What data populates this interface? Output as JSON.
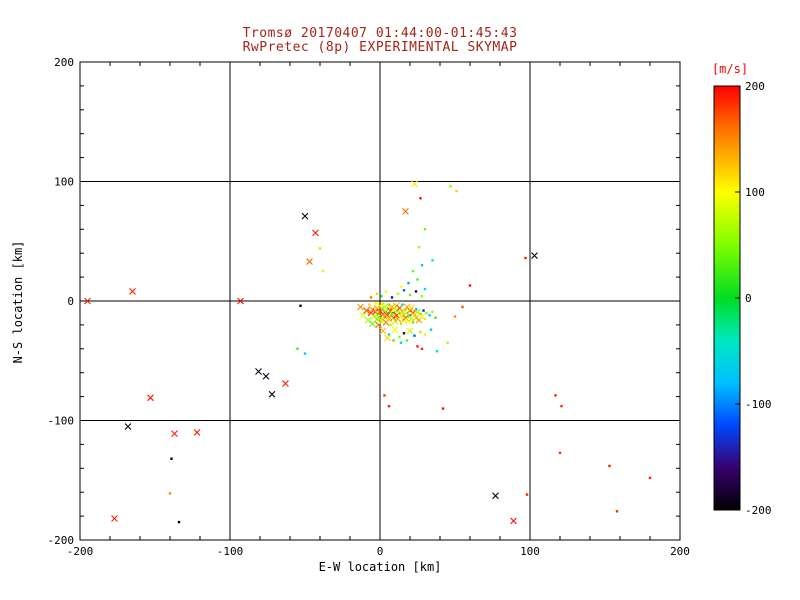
{
  "title": {
    "line1": "Tromsø 20170407 01:44:00-01:45:43",
    "line2": "RwPretec (8p) EXPERIMENTAL SKYMAP"
  },
  "colors": {
    "title": "#a82318",
    "axis": "#000000",
    "colorbar_label": "#ff0000",
    "background": "#ffffff"
  },
  "chart_data": {
    "type": "scatter",
    "title": "Tromsø 20170407 01:44:00-01:45:43",
    "subtitle": "RwPretec (8p) EXPERIMENTAL SKYMAP",
    "xlabel": "E-W location [km]",
    "ylabel": "N-S location [km]",
    "xlim": [
      -200,
      200
    ],
    "ylim": [
      -200,
      200
    ],
    "xticks": [
      -200,
      -100,
      0,
      100,
      200
    ],
    "yticks": [
      -200,
      -100,
      0,
      100,
      200
    ],
    "minor_tick_step": 20,
    "grid": true,
    "grid_ticks": [
      -100,
      0,
      100
    ],
    "colorbar": {
      "label": "[m/s]",
      "min": -200,
      "max": 200,
      "ticks": [
        200,
        100,
        0,
        -100,
        -200
      ]
    },
    "colormap": [
      [
        200,
        "#ff0000"
      ],
      [
        160,
        "#ff7000"
      ],
      [
        100,
        "#ffff00"
      ],
      [
        50,
        "#80ff00"
      ],
      [
        0,
        "#00dd20"
      ],
      [
        -40,
        "#00e8c0"
      ],
      [
        -80,
        "#00c0ff"
      ],
      [
        -120,
        "#0048ff"
      ],
      [
        -160,
        "#38006e"
      ],
      [
        -200,
        "#000000"
      ]
    ],
    "marker_legend": {
      "0": "dot",
      "1": "x"
    },
    "points_format": [
      "x_km",
      "y_km",
      "velocity_ms",
      "marker"
    ],
    "points": [
      [
        -195,
        0,
        190,
        1
      ],
      [
        -165,
        8,
        185,
        1
      ],
      [
        -93,
        0,
        195,
        1
      ],
      [
        -53,
        -4,
        -185,
        0
      ],
      [
        -50,
        71,
        -195,
        1
      ],
      [
        -43,
        57,
        190,
        1
      ],
      [
        -47,
        33,
        160,
        1
      ],
      [
        -40,
        44,
        120,
        0
      ],
      [
        -38,
        25,
        80,
        0
      ],
      [
        17,
        75,
        160,
        1
      ],
      [
        23,
        98,
        110,
        1
      ],
      [
        47,
        96,
        60,
        0
      ],
      [
        51,
        92,
        120,
        0
      ],
      [
        27,
        86,
        195,
        0
      ],
      [
        30,
        60,
        40,
        0
      ],
      [
        26,
        45,
        60,
        0
      ],
      [
        35,
        34,
        -40,
        0
      ],
      [
        103,
        38,
        -200,
        1
      ],
      [
        60,
        13,
        195,
        0
      ],
      [
        117,
        -79,
        190,
        0
      ],
      [
        121,
        -88,
        185,
        0
      ],
      [
        42,
        -90,
        195,
        0
      ],
      [
        3,
        -79,
        180,
        0
      ],
      [
        6,
        -88,
        190,
        0
      ],
      [
        -81,
        -59,
        -195,
        1
      ],
      [
        -76,
        -63,
        -185,
        1
      ],
      [
        -63,
        -69,
        190,
        1
      ],
      [
        -72,
        -78,
        -200,
        1
      ],
      [
        -153,
        -81,
        195,
        1
      ],
      [
        -168,
        -105,
        -195,
        1
      ],
      [
        -137,
        -111,
        190,
        1
      ],
      [
        -122,
        -110,
        185,
        1
      ],
      [
        -139,
        -132,
        -190,
        0
      ],
      [
        -140,
        -161,
        150,
        0
      ],
      [
        -134,
        -185,
        -195,
        0
      ],
      [
        -177,
        -182,
        190,
        1
      ],
      [
        77,
        -163,
        -200,
        1
      ],
      [
        98,
        -162,
        190,
        0
      ],
      [
        89,
        -184,
        195,
        1
      ],
      [
        158,
        -176,
        185,
        0
      ],
      [
        153,
        -138,
        190,
        0
      ],
      [
        120,
        -127,
        180,
        0
      ],
      [
        -50,
        -44,
        -70,
        0
      ],
      [
        -55,
        -40,
        30,
        0
      ],
      [
        180,
        -148,
        190,
        0
      ],
      [
        38,
        -42,
        -40,
        0
      ],
      [
        45,
        -35,
        70,
        0
      ],
      [
        97,
        36,
        190,
        0
      ],
      [
        28,
        -40,
        185,
        0
      ],
      [
        50,
        -13,
        150,
        0
      ],
      [
        55,
        -5,
        170,
        0
      ],
      [
        -13,
        -5,
        150,
        1
      ],
      [
        -11,
        -12,
        90,
        1
      ],
      [
        -9,
        -8,
        170,
        1
      ],
      [
        -8,
        -16,
        60,
        1
      ],
      [
        -7,
        -3,
        120,
        0
      ],
      [
        -6,
        -10,
        185,
        1
      ],
      [
        -5,
        -19,
        40,
        1
      ],
      [
        -5,
        -7,
        140,
        1
      ],
      [
        -4,
        -13,
        80,
        1
      ],
      [
        -3,
        -2,
        100,
        0
      ],
      [
        -3,
        -9,
        190,
        1
      ],
      [
        -2,
        -15,
        55,
        1
      ],
      [
        -2,
        -6,
        130,
        1
      ],
      [
        -1,
        -11,
        75,
        1
      ],
      [
        -1,
        -20,
        165,
        1
      ],
      [
        0,
        -4,
        95,
        1
      ],
      [
        0,
        -9,
        180,
        1
      ],
      [
        0,
        -14,
        45,
        1
      ],
      [
        1,
        -7,
        150,
        1
      ],
      [
        1,
        -17,
        85,
        1
      ],
      [
        2,
        -2,
        110,
        0
      ],
      [
        2,
        -11,
        195,
        1
      ],
      [
        3,
        -5,
        65,
        1
      ],
      [
        3,
        -13,
        135,
        1
      ],
      [
        4,
        -9,
        25,
        1
      ],
      [
        4,
        -18,
        155,
        1
      ],
      [
        5,
        -6,
        90,
        1
      ],
      [
        5,
        -12,
        175,
        1
      ],
      [
        6,
        -3,
        50,
        0
      ],
      [
        6,
        -15,
        120,
        1
      ],
      [
        7,
        -8,
        185,
        1
      ],
      [
        7,
        -20,
        70,
        0
      ],
      [
        8,
        -5,
        140,
        1
      ],
      [
        8,
        -11,
        35,
        1
      ],
      [
        9,
        -14,
        160,
        1
      ],
      [
        9,
        -7,
        105,
        1
      ],
      [
        10,
        -10,
        -20,
        0
      ],
      [
        10,
        -17,
        80,
        1
      ],
      [
        11,
        -4,
        125,
        1
      ],
      [
        11,
        -12,
        190,
        1
      ],
      [
        12,
        -8,
        55,
        1
      ],
      [
        12,
        -15,
        145,
        1
      ],
      [
        13,
        -11,
        15,
        0
      ],
      [
        13,
        -6,
        170,
        1
      ],
      [
        14,
        -13,
        95,
        1
      ],
      [
        14,
        -19,
        60,
        0
      ],
      [
        15,
        -9,
        130,
        1
      ],
      [
        15,
        -3,
        -40,
        0
      ],
      [
        16,
        -12,
        85,
        1
      ],
      [
        16,
        -16,
        110,
        1
      ],
      [
        17,
        -7,
        45,
        0
      ],
      [
        17,
        -14,
        165,
        1
      ],
      [
        18,
        -10,
        70,
        1
      ],
      [
        18,
        -5,
        135,
        1
      ],
      [
        19,
        -13,
        20,
        0
      ],
      [
        19,
        -17,
        100,
        1
      ],
      [
        20,
        -8,
        155,
        1
      ],
      [
        20,
        -12,
        -60,
        0
      ],
      [
        21,
        -6,
        115,
        1
      ],
      [
        21,
        -15,
        75,
        1
      ],
      [
        22,
        -10,
        180,
        1
      ],
      [
        22,
        -18,
        40,
        0
      ],
      [
        23,
        -12,
        90,
        1
      ],
      [
        24,
        -7,
        -100,
        0
      ],
      [
        24,
        -14,
        125,
        1
      ],
      [
        25,
        -9,
        60,
        1
      ],
      [
        26,
        -16,
        145,
        1
      ],
      [
        27,
        -11,
        30,
        0
      ],
      [
        28,
        -13,
        105,
        1
      ],
      [
        29,
        -8,
        -140,
        0
      ],
      [
        30,
        -15,
        80,
        0
      ],
      [
        31,
        -10,
        50,
        0
      ],
      [
        33,
        -12,
        -80,
        0
      ],
      [
        35,
        -9,
        65,
        0
      ],
      [
        37,
        -14,
        20,
        0
      ],
      [
        -6,
        3,
        160,
        0
      ],
      [
        -2,
        6,
        120,
        0
      ],
      [
        1,
        4,
        -30,
        0
      ],
      [
        4,
        8,
        90,
        0
      ],
      [
        8,
        3,
        -150,
        0
      ],
      [
        12,
        6,
        70,
        0
      ],
      [
        16,
        9,
        -110,
        0
      ],
      [
        20,
        5,
        40,
        0
      ],
      [
        24,
        8,
        -170,
        0
      ],
      [
        28,
        4,
        55,
        0
      ],
      [
        14,
        12,
        100,
        0
      ],
      [
        19,
        15,
        -90,
        0
      ],
      [
        25,
        18,
        30,
        0
      ],
      [
        30,
        10,
        -50,
        0
      ],
      [
        22,
        25,
        45,
        0
      ],
      [
        28,
        30,
        -20,
        0
      ],
      [
        2,
        -25,
        130,
        1
      ],
      [
        6,
        -28,
        -60,
        0
      ],
      [
        10,
        -24,
        95,
        1
      ],
      [
        13,
        -30,
        50,
        0
      ],
      [
        16,
        -27,
        -170,
        0
      ],
      [
        20,
        -25,
        75,
        1
      ],
      [
        23,
        -29,
        -110,
        0
      ],
      [
        27,
        -26,
        60,
        0
      ],
      [
        9,
        -33,
        25,
        0
      ],
      [
        14,
        -35,
        -45,
        0
      ],
      [
        30,
        -28,
        85,
        0
      ],
      [
        34,
        -24,
        -25,
        0
      ],
      [
        5,
        -31,
        115,
        1
      ],
      [
        18,
        -33,
        35,
        0
      ],
      [
        25,
        -38,
        190,
        0
      ]
    ]
  }
}
